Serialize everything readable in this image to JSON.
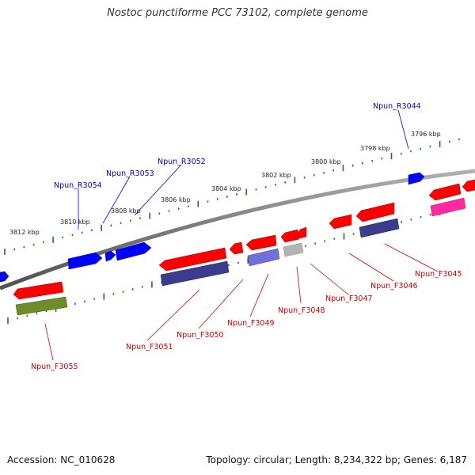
{
  "title": "Nostoc punctiforme PCC 73102, complete genome",
  "footer": {
    "accession": "Accession: NC_010628",
    "summary": "Topology: circular; Length: 8,234,322 bp; Genes: 6,187"
  },
  "scale_ticks": [
    {
      "label": "3796 kbp"
    },
    {
      "label": "3798 kbp"
    },
    {
      "label": "3800 kbp"
    },
    {
      "label": "3802 kbp"
    },
    {
      "label": "3804 kbp"
    },
    {
      "label": "3806 kbp"
    },
    {
      "label": "3808 kbp"
    },
    {
      "label": "3810 kbp"
    },
    {
      "label": "3812 kbp"
    }
  ],
  "genes_reverse": [
    {
      "label": "Npun_R3044",
      "color": "#0000cc"
    },
    {
      "label": "Npun_R3052",
      "color": "#0000cc"
    },
    {
      "label": "Npun_R3053",
      "color": "#0000cc"
    },
    {
      "label": "Npun_R3054",
      "color": "#0000cc"
    }
  ],
  "genes_forward": [
    {
      "label": "Npun_F3045",
      "color": "#cc0000"
    },
    {
      "label": "Npun_F3046",
      "color": "#cc0000"
    },
    {
      "label": "Npun_F3047",
      "color": "#cc0000"
    },
    {
      "label": "Npun_F3048",
      "color": "#cc0000"
    },
    {
      "label": "Npun_F3049",
      "color": "#cc0000"
    },
    {
      "label": "Npun_F3050",
      "color": "#cc0000"
    },
    {
      "label": "Npun_F3051",
      "color": "#cc0000"
    },
    {
      "label": "Npun_F3055",
      "color": "#cc0000"
    }
  ],
  "colors": {
    "backbone": "#808080",
    "scale_dots": "#1a7a1a",
    "gene_red": "#ff0000",
    "gene_blue": "#0000ff",
    "cog_navy": "#3c3c8c",
    "cog_lavender": "#7070d8",
    "cog_gray": "#b4b4b4",
    "cog_pink": "#ff2aa0",
    "cog_olive": "#6e8c28"
  }
}
